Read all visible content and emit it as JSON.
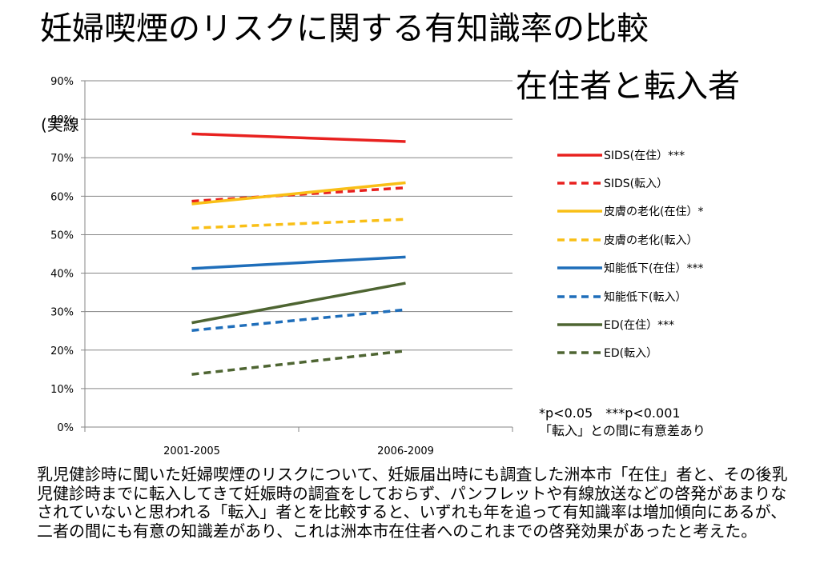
{
  "title": "妊婦喫煙のリスクに関する有知識率の比較",
  "subtitle": "在住者と転入者",
  "overlap_label": "(実線",
  "footnote": {
    "line1": "*p<0.05　***p<0.001",
    "line2": "「転入」との間に有意差あり"
  },
  "caption": "乳児健診時に聞いた妊婦喫煙のリスクについて、妊娠届出時にも調査した洲本市「在住」者と、その後乳児健診時までに転入してきて妊娠時の調査をしておらず、パンフレットや有線放送などの啓発があまりなされていないと思われる「転入」者とを比較すると、いずれも年を追って有知識率は増加傾向にあるが、二者の間にも有意の知識差があり、これは洲本市在住者へのこれまでの啓発効果があったと考えた。",
  "chart_data": {
    "type": "line",
    "categories": [
      "2001-2005",
      "2006-2009"
    ],
    "y_ticks": [
      "0%",
      "10%",
      "20%",
      "30%",
      "40%",
      "50%",
      "60%",
      "70%",
      "80%",
      "90%"
    ],
    "ylim": [
      0,
      90
    ],
    "grid": true,
    "legend_position": "right",
    "series": [
      {
        "name": "SIDS(在住）***",
        "values": [
          76.2,
          74.2
        ],
        "color": "#e8211f",
        "dashed": false
      },
      {
        "name": "SIDS(転入）",
        "values": [
          58.7,
          62.2
        ],
        "color": "#e8211f",
        "dashed": true
      },
      {
        "name": "皮膚の老化(在住）*",
        "values": [
          58.0,
          63.5
        ],
        "color": "#f9bf16",
        "dashed": false
      },
      {
        "name": "皮膚の老化(転入）",
        "values": [
          51.7,
          54.0
        ],
        "color": "#f9bf16",
        "dashed": true
      },
      {
        "name": "知能低下(在住）***",
        "values": [
          41.2,
          44.2
        ],
        "color": "#1f6eba",
        "dashed": false
      },
      {
        "name": "知能低下(転入）",
        "values": [
          25.1,
          30.5
        ],
        "color": "#1f6eba",
        "dashed": true
      },
      {
        "name": "ED(在住）***",
        "values": [
          27.1,
          37.4
        ],
        "color": "#4e6532",
        "dashed": false
      },
      {
        "name": "ED(転入）",
        "values": [
          13.7,
          19.8
        ],
        "color": "#4e6532",
        "dashed": true
      }
    ]
  }
}
